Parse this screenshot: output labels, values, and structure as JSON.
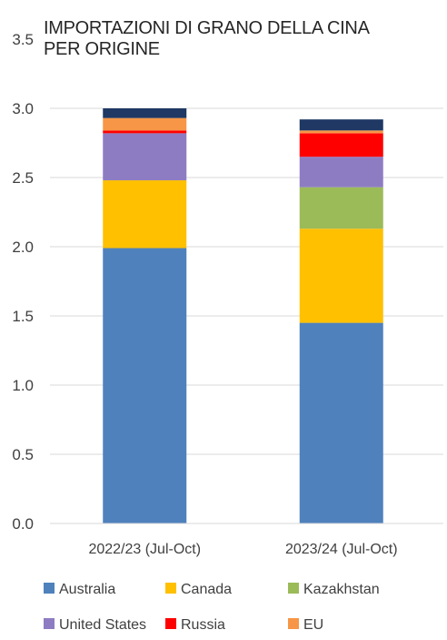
{
  "chart_data": {
    "type": "bar",
    "stacked": true,
    "title_lines": [
      "IMPORTAZIONI DI GRANO DELLA CINA",
      "PER ORIGINE"
    ],
    "categories": [
      "2022/23 (Jul-Oct)",
      "2023/24 (Jul-Oct)"
    ],
    "series": [
      {
        "name": "Australia",
        "color": "#4F81BD",
        "values": [
          1.99,
          1.45
        ]
      },
      {
        "name": "Canada",
        "color": "#FFC000",
        "values": [
          0.49,
          0.68
        ]
      },
      {
        "name": "Kazakhstan",
        "color": "#9BBB59",
        "values": [
          0.0,
          0.3
        ]
      },
      {
        "name": "United States",
        "color": "#8E7CC3",
        "values": [
          0.34,
          0.22
        ]
      },
      {
        "name": "Russia",
        "color": "#FF0000",
        "values": [
          0.02,
          0.17
        ]
      },
      {
        "name": "EU",
        "color": "#F79646",
        "values": [
          0.09,
          0.02
        ]
      },
      {
        "color": "#1F3864",
        "values": [
          0.07,
          0.08
        ]
      }
    ],
    "ylim": [
      0,
      3.5
    ],
    "yticks": [
      "0.0",
      "0.5",
      "1.0",
      "1.5",
      "2.0",
      "2.5",
      "3.0",
      "3.5"
    ],
    "grid": true,
    "legend_position": "bottom"
  }
}
